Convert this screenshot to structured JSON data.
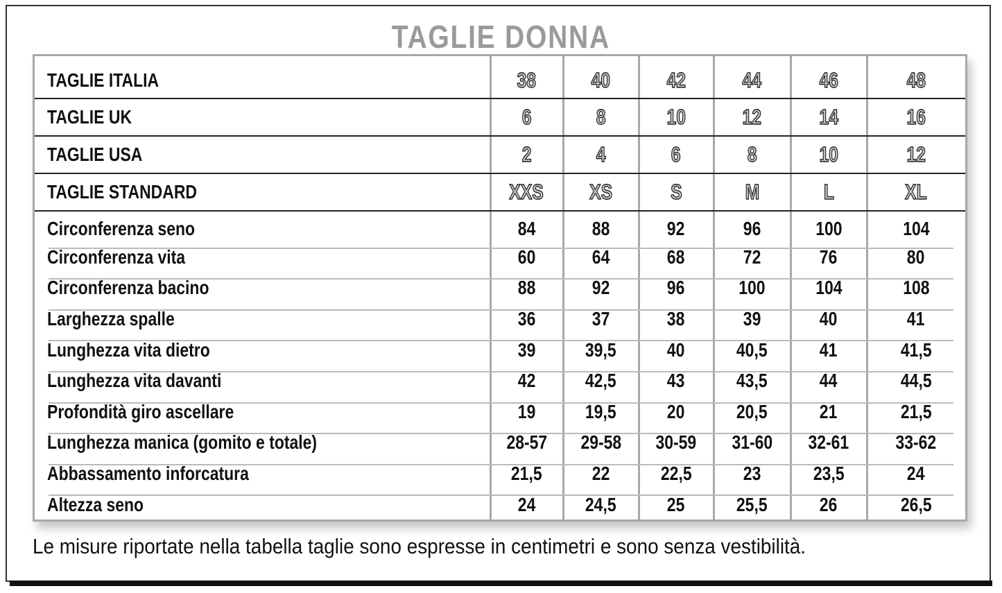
{
  "title": "TAGLIE DONNA",
  "header_rows": [
    {
      "label": "TAGLIE ITALIA",
      "values": [
        "38",
        "40",
        "42",
        "44",
        "46",
        "48"
      ]
    },
    {
      "label": "TAGLIE UK",
      "values": [
        "6",
        "8",
        "10",
        "12",
        "14",
        "16"
      ]
    },
    {
      "label": "TAGLIE USA",
      "values": [
        "2",
        "4",
        "6",
        "8",
        "10",
        "12"
      ]
    },
    {
      "label": "TAGLIE STANDARD",
      "values": [
        "XXS",
        "XS",
        "S",
        "M",
        "L",
        "XL"
      ]
    }
  ],
  "measure_rows": [
    {
      "label": "Circonferenza seno",
      "values": [
        "84",
        "88",
        "92",
        "96",
        "100",
        "104"
      ]
    },
    {
      "label": "Circonferenza vita",
      "values": [
        "60",
        "64",
        "68",
        "72",
        "76",
        "80"
      ]
    },
    {
      "label": "Circonferenza bacino",
      "values": [
        "88",
        "92",
        "96",
        "100",
        "104",
        "108"
      ]
    },
    {
      "label": "Larghezza spalle",
      "values": [
        "36",
        "37",
        "38",
        "39",
        "40",
        "41"
      ]
    },
    {
      "label": "Lunghezza vita dietro",
      "values": [
        "39",
        "39,5",
        "40",
        "40,5",
        "41",
        "41,5"
      ]
    },
    {
      "label": "Lunghezza vita davanti",
      "values": [
        "42",
        "42,5",
        "43",
        "43,5",
        "44",
        "44,5"
      ]
    },
    {
      "label": "Profondità giro ascellare",
      "values": [
        "19",
        "19,5",
        "20",
        "20,5",
        "21",
        "21,5"
      ]
    },
    {
      "label": "Lunghezza manica (gomito e totale)",
      "values": [
        "28-57",
        "29-58",
        "30-59",
        "31-60",
        "32-61",
        "33-62"
      ]
    },
    {
      "label": "Abbassamento inforcatura",
      "values": [
        "21,5",
        "22",
        "22,5",
        "23",
        "23,5",
        "24"
      ]
    },
    {
      "label": "Altezza seno",
      "values": [
        "24",
        "24,5",
        "25",
        "25,5",
        "26",
        "26,5"
      ]
    }
  ],
  "note": "Le misure riportate nella tabella taglie sono espresse in centimetri e sono senza vestibilità."
}
